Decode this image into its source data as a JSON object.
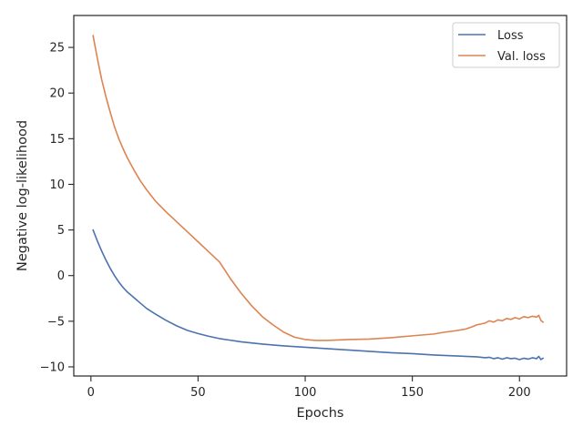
{
  "chart_data": {
    "type": "line",
    "xlabel": "Epochs",
    "ylabel": "Negative log-likelihood",
    "xlim": [
      -8,
      222
    ],
    "ylim": [
      -11.0,
      28.5
    ],
    "xticks": [
      0,
      50,
      100,
      150,
      200
    ],
    "yticks": [
      -10,
      -5,
      0,
      5,
      10,
      15,
      20,
      25
    ],
    "grid": false,
    "legend_position": "upper right",
    "series": [
      {
        "name": "Loss",
        "color": "#4c72b0",
        "points": [
          [
            1,
            5.0
          ],
          [
            3,
            3.8
          ],
          [
            5,
            2.7
          ],
          [
            7,
            1.7
          ],
          [
            9,
            0.8
          ],
          [
            11,
            0.0
          ],
          [
            13,
            -0.7
          ],
          [
            15,
            -1.3
          ],
          [
            17,
            -1.8
          ],
          [
            20,
            -2.4
          ],
          [
            23,
            -3.0
          ],
          [
            26,
            -3.6
          ],
          [
            30,
            -4.2
          ],
          [
            35,
            -4.9
          ],
          [
            40,
            -5.5
          ],
          [
            45,
            -6.0
          ],
          [
            50,
            -6.35
          ],
          [
            55,
            -6.65
          ],
          [
            60,
            -6.9
          ],
          [
            70,
            -7.25
          ],
          [
            80,
            -7.5
          ],
          [
            90,
            -7.7
          ],
          [
            100,
            -7.85
          ],
          [
            110,
            -8.0
          ],
          [
            120,
            -8.15
          ],
          [
            130,
            -8.3
          ],
          [
            140,
            -8.45
          ],
          [
            150,
            -8.55
          ],
          [
            160,
            -8.7
          ],
          [
            170,
            -8.8
          ],
          [
            180,
            -8.9
          ],
          [
            184,
            -9.0
          ],
          [
            186,
            -8.95
          ],
          [
            188,
            -9.1
          ],
          [
            190,
            -9.0
          ],
          [
            192,
            -9.15
          ],
          [
            194,
            -9.0
          ],
          [
            196,
            -9.1
          ],
          [
            198,
            -9.05
          ],
          [
            200,
            -9.2
          ],
          [
            202,
            -9.05
          ],
          [
            204,
            -9.15
          ],
          [
            206,
            -9.0
          ],
          [
            208,
            -9.1
          ],
          [
            209,
            -8.85
          ],
          [
            210,
            -9.2
          ],
          [
            211,
            -9.05
          ]
        ]
      },
      {
        "name": "Val. loss",
        "color": "#dd8452",
        "points": [
          [
            1,
            26.3
          ],
          [
            3,
            23.8
          ],
          [
            5,
            21.5
          ],
          [
            7,
            19.6
          ],
          [
            9,
            17.9
          ],
          [
            11,
            16.3
          ],
          [
            13,
            15.0
          ],
          [
            15,
            13.9
          ],
          [
            17,
            12.9
          ],
          [
            20,
            11.6
          ],
          [
            23,
            10.4
          ],
          [
            26,
            9.4
          ],
          [
            30,
            8.2
          ],
          [
            35,
            7.0
          ],
          [
            40,
            5.9
          ],
          [
            45,
            4.8
          ],
          [
            50,
            3.7
          ],
          [
            55,
            2.6
          ],
          [
            60,
            1.5
          ],
          [
            65,
            -0.3
          ],
          [
            70,
            -1.9
          ],
          [
            75,
            -3.3
          ],
          [
            80,
            -4.5
          ],
          [
            85,
            -5.4
          ],
          [
            90,
            -6.2
          ],
          [
            95,
            -6.75
          ],
          [
            100,
            -7.0
          ],
          [
            105,
            -7.1
          ],
          [
            110,
            -7.1
          ],
          [
            120,
            -7.0
          ],
          [
            130,
            -6.95
          ],
          [
            140,
            -6.8
          ],
          [
            150,
            -6.6
          ],
          [
            160,
            -6.4
          ],
          [
            165,
            -6.2
          ],
          [
            170,
            -6.05
          ],
          [
            175,
            -5.85
          ],
          [
            178,
            -5.6
          ],
          [
            180,
            -5.4
          ],
          [
            182,
            -5.3
          ],
          [
            184,
            -5.2
          ],
          [
            186,
            -4.95
          ],
          [
            188,
            -5.1
          ],
          [
            190,
            -4.85
          ],
          [
            192,
            -4.95
          ],
          [
            194,
            -4.7
          ],
          [
            196,
            -4.8
          ],
          [
            198,
            -4.6
          ],
          [
            200,
            -4.75
          ],
          [
            202,
            -4.5
          ],
          [
            204,
            -4.6
          ],
          [
            206,
            -4.45
          ],
          [
            208,
            -4.55
          ],
          [
            209,
            -4.35
          ],
          [
            210,
            -4.9
          ],
          [
            211,
            -5.1
          ]
        ]
      }
    ]
  }
}
